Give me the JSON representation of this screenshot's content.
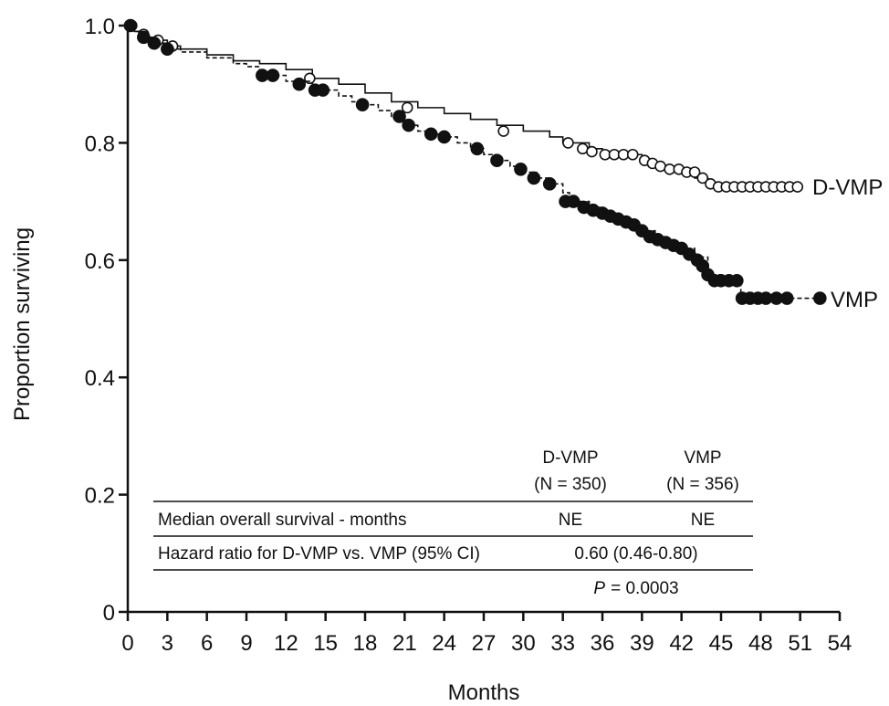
{
  "chart_data": {
    "type": "line",
    "xlabel": "Months",
    "ylabel": "Proportion surviving",
    "xlim": [
      0,
      54
    ],
    "ylim": [
      0,
      1.0
    ],
    "x_ticks": [
      0,
      3,
      6,
      9,
      12,
      15,
      18,
      21,
      24,
      27,
      30,
      33,
      36,
      39,
      42,
      45,
      48,
      51,
      54
    ],
    "y_ticks": [
      {
        "value": 0,
        "label": "0"
      },
      {
        "value": 0.2,
        "label": "0.2"
      },
      {
        "value": 0.4,
        "label": "0.4"
      },
      {
        "value": 0.6,
        "label": "0.6"
      },
      {
        "value": 0.8,
        "label": "0.8"
      },
      {
        "value": 1.0,
        "label": "1.0"
      }
    ],
    "grid": false,
    "series": [
      {
        "name": "D-VMP",
        "style": "solid",
        "marker": "open-circle",
        "color": "#111111",
        "steps": [
          [
            0,
            1.0
          ],
          [
            0.5,
            0.99
          ],
          [
            1,
            0.985
          ],
          [
            1.5,
            0.98
          ],
          [
            2,
            0.975
          ],
          [
            3,
            0.965
          ],
          [
            4,
            0.96
          ],
          [
            6,
            0.95
          ],
          [
            8,
            0.94
          ],
          [
            10,
            0.935
          ],
          [
            12,
            0.925
          ],
          [
            14,
            0.91
          ],
          [
            16,
            0.9
          ],
          [
            18,
            0.885
          ],
          [
            20,
            0.87
          ],
          [
            22,
            0.86
          ],
          [
            24,
            0.85
          ],
          [
            26,
            0.84
          ],
          [
            28,
            0.83
          ],
          [
            30,
            0.82
          ],
          [
            32,
            0.81
          ],
          [
            33,
            0.8
          ],
          [
            35,
            0.79
          ],
          [
            36,
            0.78
          ],
          [
            39,
            0.77
          ],
          [
            40,
            0.76
          ],
          [
            41,
            0.755
          ],
          [
            42,
            0.75
          ],
          [
            43,
            0.74
          ],
          [
            44,
            0.725
          ],
          [
            47,
            0.725
          ],
          [
            51,
            0.725
          ]
        ],
        "censor_marks": [
          [
            0.3,
            1.0
          ],
          [
            1.2,
            0.985
          ],
          [
            2.3,
            0.975
          ],
          [
            3.4,
            0.965
          ],
          [
            13.8,
            0.91
          ],
          [
            21.2,
            0.86
          ],
          [
            28.5,
            0.82
          ],
          [
            33.4,
            0.8
          ],
          [
            34.5,
            0.79
          ],
          [
            35.2,
            0.785
          ],
          [
            36.2,
            0.78
          ],
          [
            36.9,
            0.78
          ],
          [
            37.6,
            0.78
          ],
          [
            38.3,
            0.78
          ],
          [
            39.2,
            0.77
          ],
          [
            39.8,
            0.765
          ],
          [
            40.4,
            0.76
          ],
          [
            41.1,
            0.755
          ],
          [
            41.8,
            0.755
          ],
          [
            42.4,
            0.75
          ],
          [
            43.0,
            0.75
          ],
          [
            43.6,
            0.74
          ],
          [
            44.2,
            0.73
          ],
          [
            44.8,
            0.725
          ],
          [
            45.4,
            0.725
          ],
          [
            46.0,
            0.725
          ],
          [
            46.6,
            0.725
          ],
          [
            47.2,
            0.725
          ],
          [
            47.8,
            0.725
          ],
          [
            48.4,
            0.725
          ],
          [
            49.0,
            0.725
          ],
          [
            49.6,
            0.725
          ],
          [
            50.2,
            0.725
          ],
          [
            50.8,
            0.725
          ]
        ]
      },
      {
        "name": "VMP",
        "style": "dashed",
        "marker": "filled-circle",
        "color": "#111111",
        "steps": [
          [
            0,
            1.0
          ],
          [
            0.5,
            0.99
          ],
          [
            1,
            0.98
          ],
          [
            2,
            0.97
          ],
          [
            3,
            0.96
          ],
          [
            4,
            0.955
          ],
          [
            6,
            0.945
          ],
          [
            8,
            0.935
          ],
          [
            9,
            0.93
          ],
          [
            10,
            0.915
          ],
          [
            12,
            0.905
          ],
          [
            14,
            0.89
          ],
          [
            16,
            0.88
          ],
          [
            17,
            0.87
          ],
          [
            18,
            0.865
          ],
          [
            19,
            0.855
          ],
          [
            20,
            0.845
          ],
          [
            21,
            0.83
          ],
          [
            22,
            0.82
          ],
          [
            23,
            0.815
          ],
          [
            24,
            0.81
          ],
          [
            25,
            0.8
          ],
          [
            26,
            0.79
          ],
          [
            27,
            0.78
          ],
          [
            28,
            0.77
          ],
          [
            29,
            0.76
          ],
          [
            30,
            0.75
          ],
          [
            31,
            0.74
          ],
          [
            32,
            0.73
          ],
          [
            33,
            0.715
          ],
          [
            33.5,
            0.7
          ],
          [
            35,
            0.69
          ],
          [
            36,
            0.68
          ],
          [
            37,
            0.67
          ],
          [
            38,
            0.66
          ],
          [
            39,
            0.65
          ],
          [
            40,
            0.635
          ],
          [
            41,
            0.625
          ],
          [
            42,
            0.62
          ],
          [
            43,
            0.605
          ],
          [
            44,
            0.575
          ],
          [
            45,
            0.565
          ],
          [
            46,
            0.56
          ],
          [
            46.5,
            0.535
          ],
          [
            47,
            0.535
          ],
          [
            52.5,
            0.535
          ]
        ],
        "censor_marks": [
          [
            0.2,
            1.0
          ],
          [
            1.2,
            0.98
          ],
          [
            2.0,
            0.97
          ],
          [
            3.0,
            0.96
          ],
          [
            10.2,
            0.915
          ],
          [
            11.0,
            0.915
          ],
          [
            13.0,
            0.9
          ],
          [
            14.2,
            0.89
          ],
          [
            14.8,
            0.89
          ],
          [
            17.8,
            0.865
          ],
          [
            20.6,
            0.845
          ],
          [
            21.3,
            0.83
          ],
          [
            23.0,
            0.815
          ],
          [
            24.0,
            0.81
          ],
          [
            26.5,
            0.79
          ],
          [
            28.0,
            0.77
          ],
          [
            29.8,
            0.755
          ],
          [
            30.8,
            0.74
          ],
          [
            32.0,
            0.73
          ],
          [
            33.2,
            0.7
          ],
          [
            33.8,
            0.7
          ],
          [
            34.6,
            0.69
          ],
          [
            35.3,
            0.685
          ],
          [
            36.0,
            0.68
          ],
          [
            36.6,
            0.675
          ],
          [
            37.2,
            0.67
          ],
          [
            37.8,
            0.665
          ],
          [
            38.4,
            0.66
          ],
          [
            39.0,
            0.65
          ],
          [
            39.6,
            0.64
          ],
          [
            40.2,
            0.635
          ],
          [
            40.8,
            0.63
          ],
          [
            41.4,
            0.625
          ],
          [
            42.0,
            0.62
          ],
          [
            42.6,
            0.61
          ],
          [
            43.2,
            0.6
          ],
          [
            43.6,
            0.59
          ],
          [
            44.0,
            0.575
          ],
          [
            44.5,
            0.565
          ],
          [
            45.0,
            0.565
          ],
          [
            45.6,
            0.565
          ],
          [
            46.2,
            0.565
          ],
          [
            46.6,
            0.535
          ],
          [
            47.2,
            0.535
          ],
          [
            47.8,
            0.535
          ],
          [
            48.4,
            0.535
          ],
          [
            49.2,
            0.535
          ],
          [
            50.0,
            0.535
          ],
          [
            52.5,
            0.535
          ]
        ]
      }
    ],
    "table": {
      "header": [
        {
          "arm": "D-VMP",
          "n": "(N = 350)"
        },
        {
          "arm": "VMP",
          "n": "(N = 356)"
        }
      ],
      "rows": [
        {
          "label": "Median overall survival - months",
          "d_vmp": "NE",
          "vmp": "NE"
        },
        {
          "label": "Hazard ratio for D-VMP vs. VMP (95% CI)",
          "combined": "0.60 (0.46-0.80)"
        }
      ],
      "p_label": "P",
      "p_value": "= 0.0003"
    }
  }
}
